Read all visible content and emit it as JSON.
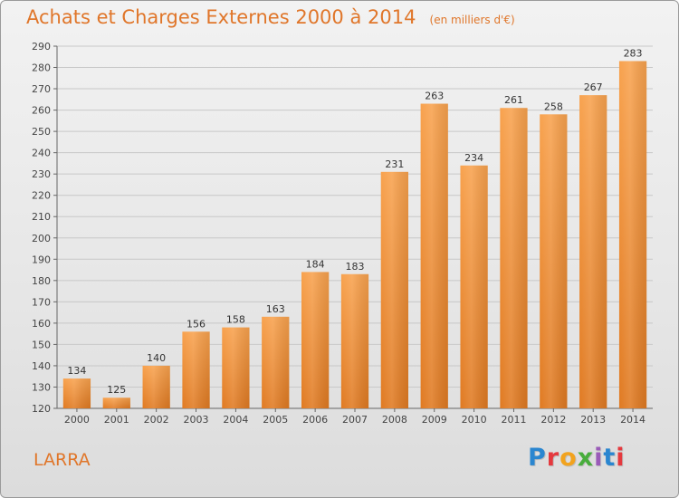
{
  "title": "Achats et Charges Externes 2000 à 2014",
  "unit": "(en milliers d'€)",
  "commune": "LARRA",
  "logo": {
    "text": "Proxiti",
    "colors": [
      "#2a86d0",
      "#e5393e",
      "#f2a31e",
      "#48ad3c",
      "#9a5bb8",
      "#2a86d0",
      "#e5393e"
    ]
  },
  "chart_data": {
    "type": "bar",
    "categories": [
      "2000",
      "2001",
      "2002",
      "2003",
      "2004",
      "2005",
      "2006",
      "2007",
      "2008",
      "2009",
      "2010",
      "2011",
      "2012",
      "2013",
      "2014"
    ],
    "values": [
      134,
      125,
      140,
      156,
      158,
      163,
      184,
      183,
      231,
      263,
      234,
      261,
      258,
      267,
      283
    ],
    "title": "Achats et Charges Externes 2000 à 2014",
    "ylim": [
      120,
      290
    ],
    "yticks": [
      120,
      130,
      140,
      150,
      160,
      170,
      180,
      190,
      200,
      210,
      220,
      230,
      240,
      250,
      260,
      270,
      280,
      290
    ],
    "grid": true,
    "bar_color": "#f0963c",
    "legend": "none"
  }
}
